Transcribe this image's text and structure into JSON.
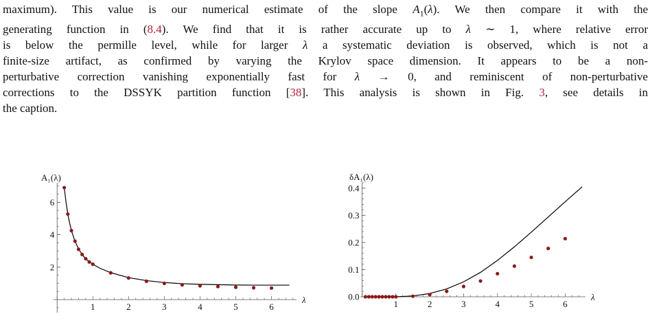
{
  "text": {
    "lines": [
      [
        "maximum). This value is our numerical estimate of the slope ",
        {
          "m": "A"
        },
        {
          "sub": "1"
        },
        "(",
        {
          "m": "λ"
        },
        "). We then compare it with the"
      ],
      [
        "generating function in (",
        {
          "ref": "8.4"
        },
        "). We find that it is rather accurate up to ",
        {
          "m": "λ"
        },
        " ∼ 1, where relative error"
      ],
      [
        "is below the permille level, while for larger ",
        {
          "m": "λ"
        },
        " a systematic deviation is observed, which is not a"
      ],
      [
        "finite-size artifact, as confirmed by varying the Krylov space dimension. It appears to be a non-"
      ],
      [
        "perturbative correction vanishing exponentially fast for ",
        {
          "m": "λ"
        },
        " → 0, and reminiscent of non-perturbative"
      ],
      [
        "corrections to the DSSYK partition function [",
        {
          "ref": "38"
        },
        "]. This analysis is shown in Fig. ",
        {
          "ref": "3"
        },
        ", see details in"
      ],
      [
        "the caption."
      ]
    ]
  },
  "chart_data": [
    {
      "type": "scatter",
      "ylabel": "A₁(λ)",
      "xlabel": "λ",
      "xlim": [
        -0.1,
        6.7
      ],
      "ylim": [
        -0.8,
        7.2
      ],
      "xticks": [
        1,
        2,
        3,
        4,
        5,
        6
      ],
      "yticks": [
        2,
        4,
        6
      ],
      "points": {
        "x": [
          0.2,
          0.3,
          0.4,
          0.5,
          0.6,
          0.7,
          0.8,
          0.9,
          1.0,
          1.5,
          2.0,
          2.5,
          3.0,
          3.5,
          4.0,
          4.5,
          5.0,
          5.5,
          6.0
        ],
        "y": [
          6.9,
          5.27,
          4.25,
          3.6,
          3.1,
          2.78,
          2.52,
          2.32,
          2.18,
          1.65,
          1.33,
          1.13,
          1.0,
          0.91,
          0.85,
          0.8,
          0.76,
          0.73,
          0.71
        ]
      },
      "curve": {
        "x": [
          0.2,
          0.25,
          0.3,
          0.35,
          0.4,
          0.5,
          0.6,
          0.7,
          0.8,
          0.9,
          1.0,
          1.2,
          1.5,
          2.0,
          2.5,
          3.0,
          3.5,
          4.0,
          4.5,
          5.0,
          5.5,
          6.0,
          6.5
        ],
        "y": [
          6.9,
          6.0,
          5.27,
          4.72,
          4.25,
          3.6,
          3.12,
          2.78,
          2.52,
          2.33,
          2.18,
          1.93,
          1.66,
          1.35,
          1.17,
          1.05,
          0.98,
          0.94,
          0.92,
          0.9,
          0.89,
          0.89,
          0.89
        ]
      },
      "point_color": "#8b1a1a",
      "line_color": "#000000"
    },
    {
      "type": "scatter",
      "ylabel": "δA₁(λ)",
      "xlabel": "λ",
      "xlim": [
        -0.05,
        6.6
      ],
      "ylim": [
        0.0,
        0.42
      ],
      "xticks": [
        1,
        2,
        3,
        4,
        5,
        6
      ],
      "yticks": [
        0.0,
        0.1,
        0.2,
        0.3,
        0.4
      ],
      "ytick_labels": [
        "0.0",
        "0.1",
        "0.2",
        "0.3",
        "0.4"
      ],
      "points": {
        "x": [
          0.1,
          0.2,
          0.3,
          0.4,
          0.5,
          0.6,
          0.7,
          0.8,
          0.9,
          1.0,
          1.5,
          2.0,
          2.5,
          3.0,
          3.5,
          4.0,
          4.5,
          5.0,
          5.5,
          6.0
        ],
        "y": [
          0.0,
          0.0,
          0.0,
          0.0,
          0.0,
          0.0,
          0.0,
          0.0,
          0.0,
          0.0,
          0.002,
          0.008,
          0.02,
          0.038,
          0.058,
          0.085,
          0.113,
          0.145,
          0.178,
          0.214
        ]
      },
      "curve": {
        "x": [
          1.0,
          1.5,
          2.0,
          2.5,
          3.0,
          3.5,
          4.0,
          4.5,
          5.0,
          5.5,
          6.0,
          6.5
        ],
        "y": [
          0.0,
          0.003,
          0.012,
          0.029,
          0.055,
          0.09,
          0.134,
          0.184,
          0.238,
          0.294,
          0.35,
          0.405
        ]
      },
      "point_color": "#8b1a1a",
      "line_color": "#000000"
    }
  ]
}
